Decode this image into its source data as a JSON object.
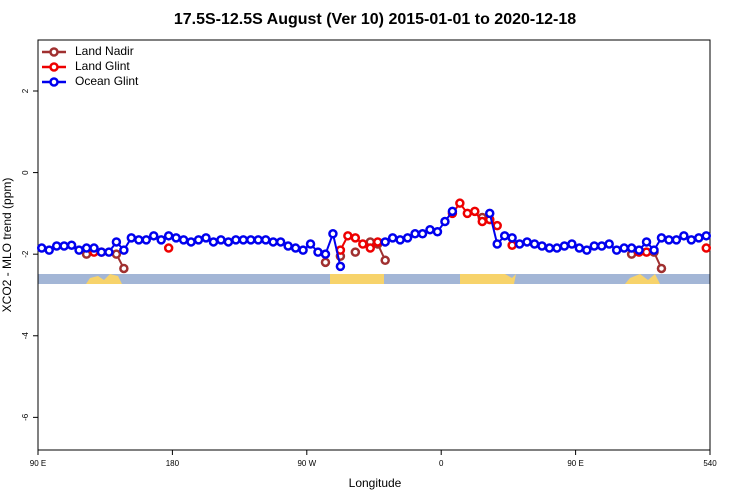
{
  "chart_data": {
    "type": "line",
    "title": "17.5S-12.5S August (Ver 10)   2015-01-01 to 2020-12-18",
    "xlabel": "Longitude",
    "ylabel": "XCO2 - MLO trend (ppm)",
    "xlim": [
      90,
      540
    ],
    "ylim": [
      -6.8,
      3.25
    ],
    "xticks": [
      {
        "value": 90,
        "label": "90 E"
      },
      180,
      {
        "value": 270,
        "label": "90 W"
      },
      {
        "value": 360,
        "label": "0"
      },
      {
        "value": 450,
        "label": "90 E"
      },
      540
    ],
    "yticks": [
      2,
      0,
      -2,
      -4,
      -6
    ],
    "legend": "top-left",
    "x": [
      92.5,
      97.5,
      102.5,
      107.5,
      112.5,
      117.5,
      122.5,
      127.5,
      132.5,
      137.5,
      142.5,
      147.5,
      152.5,
      157.5,
      162.5,
      167.5,
      172.5,
      177.5,
      182.5,
      187.5,
      192.5,
      197.5,
      202.5,
      207.5,
      212.5,
      217.5,
      222.5,
      227.5,
      232.5,
      237.5,
      242.5,
      247.5,
      252.5,
      257.5,
      262.5,
      267.5,
      272.5,
      277.5,
      282.5,
      287.5,
      292.5,
      297.5,
      302.5,
      307.5,
      312.5,
      317.5,
      322.5,
      327.5,
      332.5,
      337.5,
      342.5,
      347.5,
      352.5,
      357.5,
      362.5,
      367.5,
      372.5,
      377.5,
      382.5,
      387.5,
      392.5,
      397.5,
      402.5,
      407.5,
      412.5,
      417.5,
      422.5,
      427.5,
      432.5,
      437.5,
      442.5,
      447.5,
      452.5,
      457.5,
      462.5,
      467.5,
      472.5,
      477.5,
      482.5,
      487.5,
      492.5,
      497.5,
      502.5,
      507.5,
      512.5,
      517.5,
      522.5,
      527.5,
      532.5,
      537.5
    ],
    "series": [
      {
        "name": "Land Nadir",
        "color": "#a03030",
        "values": [
          null,
          null,
          null,
          null,
          null,
          null,
          -2.0,
          null,
          null,
          null,
          -2.0,
          -2.35,
          null,
          null,
          null,
          null,
          null,
          null,
          null,
          null,
          null,
          null,
          null,
          null,
          null,
          null,
          null,
          null,
          null,
          null,
          null,
          null,
          null,
          null,
          null,
          null,
          null,
          null,
          -2.2,
          null,
          -2.05,
          null,
          -1.95,
          null,
          -1.7,
          -1.75,
          -2.15,
          null,
          null,
          null,
          null,
          null,
          null,
          null,
          null,
          null,
          null,
          null,
          null,
          -1.1,
          -1.15,
          null,
          null,
          null,
          null,
          null,
          null,
          null,
          null,
          null,
          null,
          null,
          null,
          null,
          null,
          null,
          null,
          null,
          null,
          -2.0,
          null,
          null,
          -1.95,
          -2.35,
          null,
          null,
          null,
          null,
          null,
          null
        ]
      },
      {
        "name": "Land Glint",
        "color": "#ee0000",
        "values": [
          null,
          null,
          null,
          null,
          null,
          null,
          null,
          -1.95,
          -1.95,
          null,
          null,
          null,
          null,
          null,
          null,
          null,
          null,
          -1.85,
          null,
          null,
          null,
          null,
          null,
          null,
          null,
          null,
          null,
          null,
          null,
          null,
          null,
          null,
          null,
          null,
          null,
          null,
          null,
          null,
          null,
          null,
          -1.9,
          -1.55,
          -1.6,
          -1.75,
          -1.85,
          -1.7,
          null,
          null,
          null,
          null,
          null,
          null,
          null,
          null,
          null,
          -1.0,
          -0.75,
          -1.0,
          -0.95,
          -1.2,
          -1.15,
          -1.3,
          null,
          -1.78,
          null,
          null,
          null,
          null,
          null,
          null,
          null,
          null,
          null,
          null,
          null,
          null,
          null,
          null,
          null,
          null,
          -1.95,
          -1.95,
          null,
          null,
          null,
          null,
          null,
          null,
          null,
          -1.85
        ]
      },
      {
        "name": "Ocean Glint",
        "color": "#0000ee",
        "values": [
          -1.85,
          -1.9,
          -1.8,
          -1.8,
          -1.78,
          -1.9,
          -1.85,
          -1.85,
          -1.95,
          -1.95,
          -1.7,
          -1.9,
          -1.6,
          -1.65,
          -1.65,
          -1.55,
          -1.65,
          -1.55,
          -1.6,
          -1.65,
          -1.7,
          -1.65,
          -1.6,
          -1.7,
          -1.65,
          -1.7,
          -1.65,
          -1.65,
          -1.65,
          -1.65,
          -1.65,
          -1.7,
          -1.7,
          -1.8,
          -1.85,
          -1.9,
          -1.75,
          -1.95,
          -2.0,
          -1.5,
          -2.3,
          null,
          null,
          null,
          null,
          null,
          -1.7,
          -1.6,
          -1.65,
          -1.6,
          -1.5,
          -1.5,
          -1.4,
          -1.45,
          -1.2,
          -0.95,
          null,
          null,
          null,
          null,
          -1.0,
          -1.75,
          -1.55,
          -1.6,
          -1.75,
          -1.7,
          -1.75,
          -1.8,
          -1.85,
          -1.85,
          -1.8,
          -1.75,
          -1.85,
          -1.9,
          -1.8,
          -1.8,
          -1.75,
          -1.9,
          -1.85,
          -1.85,
          -1.9,
          -1.7,
          -1.9,
          -1.6,
          -1.65,
          -1.65,
          -1.55,
          -1.65,
          -1.6,
          -1.55
        ]
      }
    ]
  }
}
